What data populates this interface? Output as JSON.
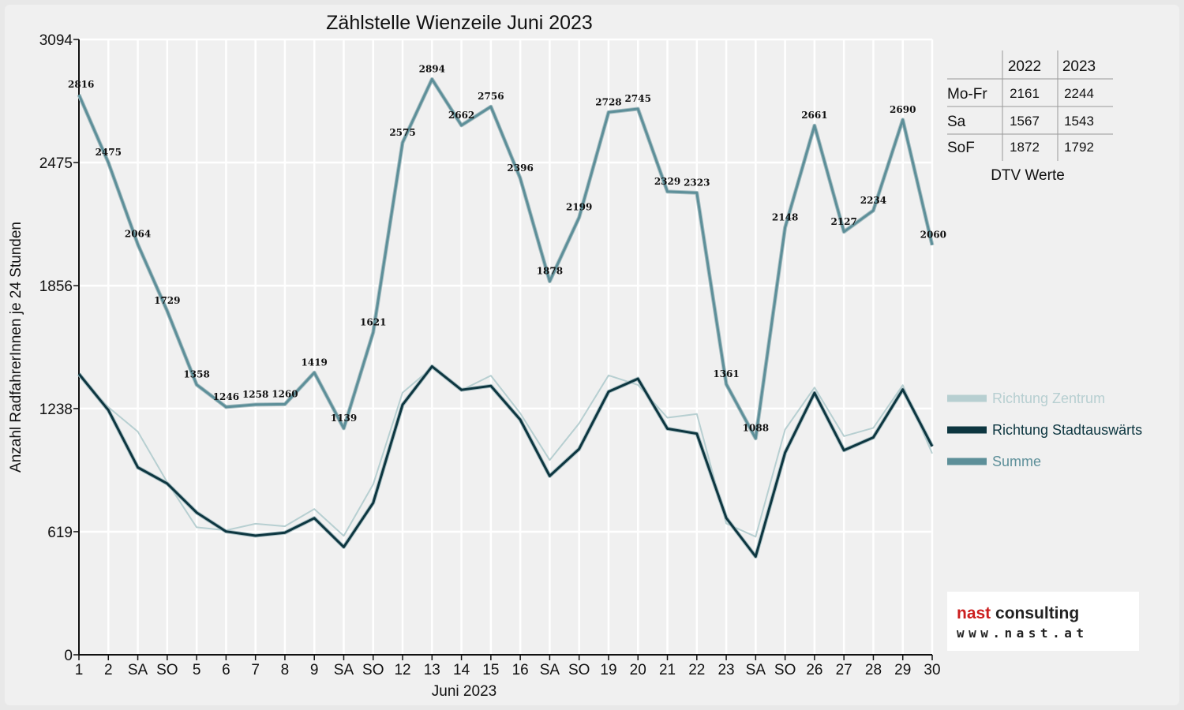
{
  "chart_data": {
    "type": "line",
    "title": "Zählstelle Wienzeile Juni 2023",
    "xlabel": "Juni 2023",
    "ylabel": "Anzahl RadfahrerInnen je 24 Stunden",
    "ylim": [
      0,
      3094
    ],
    "y_ticks": [
      "0",
      "619",
      "1238",
      "1856",
      "2475",
      "3094"
    ],
    "grid": true,
    "legend_position": "right",
    "categories": [
      "1",
      "2",
      "SA",
      "SO",
      "5",
      "6",
      "7",
      "8",
      "9",
      "SA",
      "SO",
      "12",
      "13",
      "14",
      "15",
      "16",
      "SA",
      "SO",
      "19",
      "20",
      "21",
      "22",
      "23",
      "SA",
      "SO",
      "26",
      "27",
      "28",
      "29",
      "30"
    ],
    "holiday_color": "#e00000",
    "holidays": [
      "SO",
      "8"
    ],
    "series": [
      {
        "name": "Richtung Zentrum",
        "color": "#b7cfd1",
        "width": 2,
        "values": [
          1404,
          1245,
          1122,
          868,
          641,
          626,
          659,
          646,
          733,
          598,
          857,
          1318,
          1444,
          1330,
          1404,
          1214,
          979,
          1164,
          1405,
          1357,
          1192,
          1211,
          660,
          594,
          1132,
          1344,
          1099,
          1141,
          1356,
          1012
        ]
      },
      {
        "name": "Richtung Stadtauswärts",
        "color": "#0d3640",
        "width": 3,
        "values": [
          1412,
          1230,
          942,
          861,
          715,
          620,
          599,
          614,
          687,
          542,
          764,
          1257,
          1450,
          1332,
          1352,
          1182,
          899,
          1035,
          1323,
          1388,
          1137,
          1112,
          688,
          494,
          1016,
          1317,
          1028,
          1093,
          1334,
          1048
        ]
      },
      {
        "name": "Summe",
        "color": "#5d8f99",
        "width": 3,
        "values": [
          2816,
          2475,
          2064,
          1729,
          1358,
          1246,
          1258,
          1260,
          1419,
          1139,
          1621,
          2575,
          2894,
          2662,
          2756,
          2396,
          1878,
          2199,
          2728,
          2745,
          2329,
          2323,
          1361,
          1088,
          2148,
          2661,
          2127,
          2234,
          2690,
          2060
        ]
      }
    ],
    "data_labels": [
      "2816",
      "2475",
      "2064",
      "1729",
      "1358",
      "1246",
      "1258",
      "1260",
      "1419",
      "1139",
      "1621",
      "2575",
      "2894",
      "2662",
      "2756",
      "2396",
      "1878",
      "2199",
      "2728",
      "2745",
      "2329",
      "2323",
      "1361",
      "1088",
      "2148",
      "2661",
      "2127",
      "2234",
      "2690",
      "2060"
    ]
  },
  "dtv_table": {
    "headers": [
      "",
      "2022",
      "2023"
    ],
    "rows": [
      {
        "label": "Mo-Fr",
        "v2022": "2161",
        "v2023": "2244"
      },
      {
        "label": "Sa",
        "v2022": "1567",
        "v2023": "1543"
      },
      {
        "label": "SoF",
        "v2022": "1872",
        "v2023": "1792"
      }
    ],
    "caption": "DTV Werte"
  },
  "logo": {
    "line1": "nast consulting",
    "line2": "www.nast.at",
    "accent_color": "#cc1f1f",
    "text_color": "#222222"
  }
}
